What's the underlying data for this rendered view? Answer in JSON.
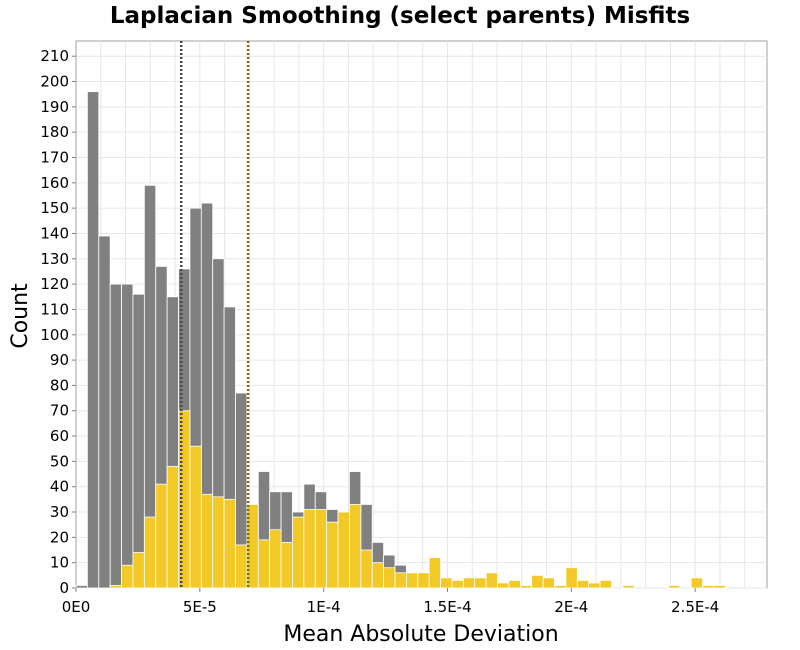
{
  "chart_data": {
    "type": "bar",
    "title": "Laplacian Smoothing (select parents) Misfits",
    "xlabel": "Mean Absolute Deviation",
    "ylabel": "Count",
    "xlim": [
      0,
      0.000279
    ],
    "ylim": [
      0,
      216
    ],
    "x_ticks": [
      {
        "value": 0,
        "label": "0E0"
      },
      {
        "value": 5e-05,
        "label": "5E-5"
      },
      {
        "value": 0.0001,
        "label": "1E-4"
      },
      {
        "value": 0.00015,
        "label": "1.5E-4"
      },
      {
        "value": 0.0002,
        "label": "2E-4"
      },
      {
        "value": 0.00025,
        "label": "2.5E-4"
      }
    ],
    "y_ticks": [
      0,
      10,
      20,
      30,
      40,
      50,
      60,
      70,
      80,
      90,
      100,
      110,
      120,
      130,
      140,
      150,
      160,
      170,
      180,
      190,
      200,
      210
    ],
    "grid": true,
    "bin_start": 0,
    "bin_width": 4.6e-06,
    "series": [
      {
        "color": "#808080",
        "values": [
          1,
          196,
          139,
          120,
          120,
          116,
          159,
          127,
          115,
          126,
          150,
          152,
          130,
          111,
          77,
          31,
          46,
          38,
          38,
          30,
          41,
          38,
          31,
          29,
          46,
          33,
          18,
          13,
          9,
          6,
          6,
          12,
          4,
          3,
          4,
          4,
          6,
          2,
          3,
          1,
          5,
          4,
          1,
          8,
          3,
          2,
          3,
          0,
          1,
          0,
          0,
          0,
          1,
          0,
          4,
          1,
          1
        ]
      },
      {
        "color": "#f2c926",
        "values": [
          0,
          0,
          0,
          1,
          9,
          14,
          28,
          41,
          48,
          70,
          56,
          37,
          36,
          35,
          17,
          33,
          19,
          23,
          18,
          28,
          31,
          31,
          26,
          30,
          33,
          15,
          10,
          8,
          6,
          6,
          6,
          12,
          4,
          3,
          4,
          4,
          6,
          2,
          3,
          1,
          5,
          4,
          1,
          8,
          3,
          2,
          3,
          0,
          1,
          0,
          0,
          0,
          1,
          0,
          4,
          1,
          1
        ]
      }
    ],
    "reference_lines": [
      {
        "x": 4.25e-05,
        "color": "#4a4a4a"
      },
      {
        "x": 6.95e-05,
        "color": "#7a6a10"
      }
    ]
  }
}
